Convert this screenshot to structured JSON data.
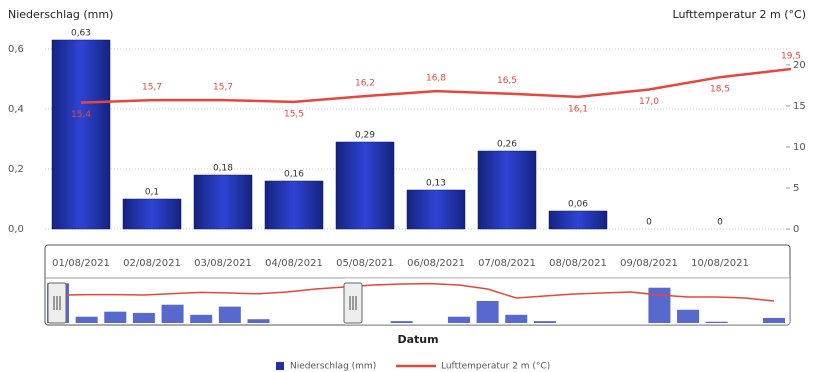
{
  "chart_data": {
    "type": "bar",
    "y_title": "Niederschlag (mm)",
    "y2_title": "Lufttemperatur 2 m (°C)",
    "x_title": "Datum",
    "categories": [
      "01/08/2021",
      "02/08/2021",
      "03/08/2021",
      "04/08/2021",
      "05/08/2021",
      "06/08/2021",
      "07/08/2021",
      "08/08/2021",
      "09/08/2021",
      "10/08/2021",
      null
    ],
    "series": [
      {
        "name": "Niederschlag (mm)",
        "type": "bar",
        "color": "#1f2fa8",
        "values": [
          0.63,
          0.1,
          0.18,
          0.16,
          0.29,
          0.13,
          0.26,
          0.06,
          0,
          0,
          null
        ],
        "value_labels": [
          "0,63",
          "0,1",
          "0,18",
          "0,16",
          "0,29",
          "0,13",
          "0,26",
          "0,06",
          "0",
          "0",
          null
        ]
      },
      {
        "name": "Lufttemperatur 2 m (°C)",
        "type": "line",
        "axis": "y2",
        "color": "#e8463a",
        "values": [
          15.4,
          15.7,
          15.7,
          15.5,
          16.2,
          16.8,
          16.5,
          16.1,
          17.0,
          18.5,
          19.5
        ],
        "value_labels": [
          "15,4",
          "15,7",
          "15,7",
          "15,5",
          "16,2",
          "16,8",
          "16,5",
          "16,1",
          "17,0",
          "18,5",
          "19,5"
        ]
      }
    ],
    "ylim": [
      0,
      0.64
    ],
    "yticks": [
      {
        "value": 0,
        "label": "0,0"
      },
      {
        "value": 0.2,
        "label": "0,2"
      },
      {
        "value": 0.4,
        "label": "0,4"
      },
      {
        "value": 0.6,
        "label": "0,6"
      }
    ],
    "y2lim": [
      0,
      23.4
    ],
    "y2ticks": [
      0,
      5,
      10,
      15,
      20
    ],
    "grid": true,
    "navigator": {
      "bar_values": [
        0.63,
        0.1,
        0.18,
        0.16,
        0.29,
        0.13,
        0.26,
        0.06,
        0,
        0,
        0,
        0,
        0.03,
        0,
        0.1,
        0.35,
        0.13,
        0.03,
        0,
        0,
        0,
        0.56,
        0.21,
        0.02,
        0,
        0.08
      ],
      "line_values": [
        15.4,
        15.7,
        15.7,
        15.5,
        16.2,
        16.8,
        16.5,
        16.1,
        17.0,
        18.5,
        19.5,
        20.5,
        21.0,
        21.2,
        20.5,
        18.5,
        14.0,
        15.0,
        16.0,
        16.5,
        17.0,
        15.5,
        14.5,
        14.5,
        14.0,
        12.5
      ]
    }
  }
}
